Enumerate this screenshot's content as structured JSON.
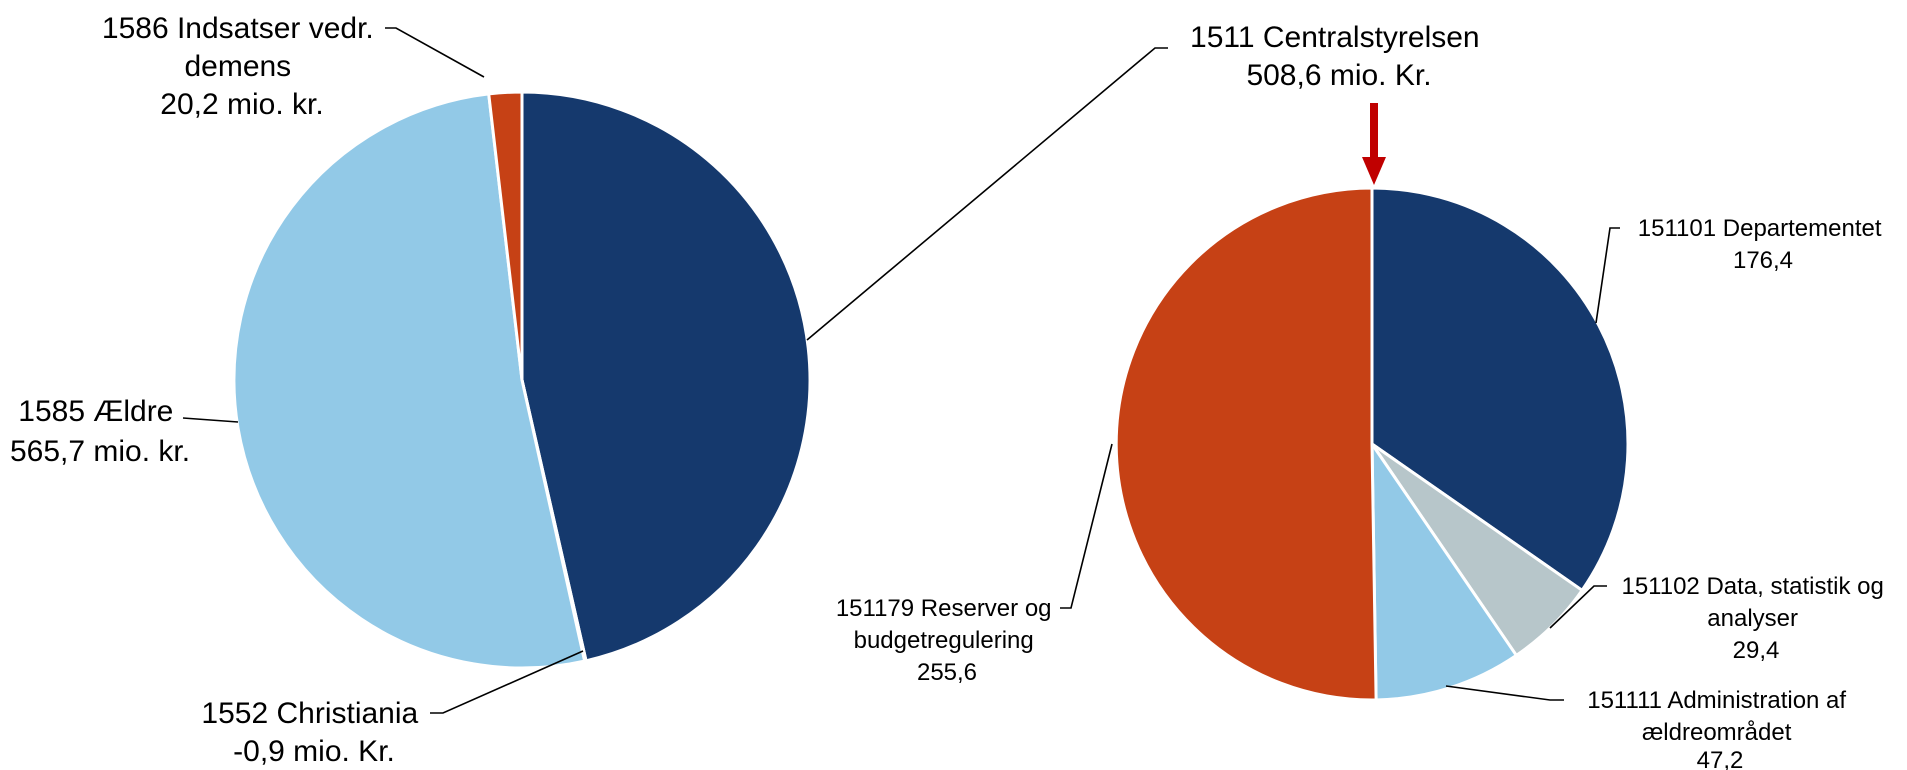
{
  "colors": {
    "dark_blue": "#15396D",
    "light_blue": "#92C9E7",
    "orange_red": "#C64115",
    "gray": "#B7C6CA",
    "arrow_red": "#C00000",
    "slice_border": "#FFFFFF"
  },
  "chart_data": [
    {
      "type": "pie",
      "title": "",
      "unit": "mio. kr.",
      "slices": [
        {
          "name": "1511 Centralstyrelsen",
          "value": 508.6,
          "color": "#15396D",
          "label_lines": [
            "1511 Centralstyrelsen",
            "508,6 mio. Kr."
          ]
        },
        {
          "name": "1552 Christiania",
          "value": -0.9,
          "color": "#92C9E7",
          "label_lines": [
            "1552 Christiania",
            "-0,9 mio. Kr."
          ]
        },
        {
          "name": "1585 Ældre",
          "value": 565.7,
          "color": "#92C9E7",
          "label_lines": [
            "1585 Ældre",
            "565,7 mio. kr."
          ]
        },
        {
          "name": "1586 Indsatser vedr. demens",
          "value": 20.2,
          "color": "#C64115",
          "label_lines": [
            "1586 Indsatser vedr.",
            "demens",
            "20,2 mio. kr."
          ]
        }
      ]
    },
    {
      "type": "pie",
      "title": "",
      "parent": "1511 Centralstyrelsen",
      "slices": [
        {
          "name": "151101 Departementet",
          "value": 176.4,
          "color": "#15396D",
          "label_lines": [
            "151101 Departementet",
            "176,4"
          ]
        },
        {
          "name": "151102 Data, statistik og analyser",
          "value": 29.4,
          "color": "#B7C6CA",
          "label_lines": [
            "151102 Data, statistik og",
            "analyser",
            "29,4"
          ]
        },
        {
          "name": "151111 Administration af ældreområdet",
          "value": 47.2,
          "color": "#92C9E7",
          "label_lines": [
            "151111 Administration af",
            "ældreområdet",
            "47,2"
          ]
        },
        {
          "name": "151179 Reserver og budgetregulering",
          "value": 255.6,
          "color": "#C64115",
          "label_lines": [
            "151179 Reserver og",
            "budgetregulering",
            "255,6"
          ]
        }
      ]
    }
  ]
}
